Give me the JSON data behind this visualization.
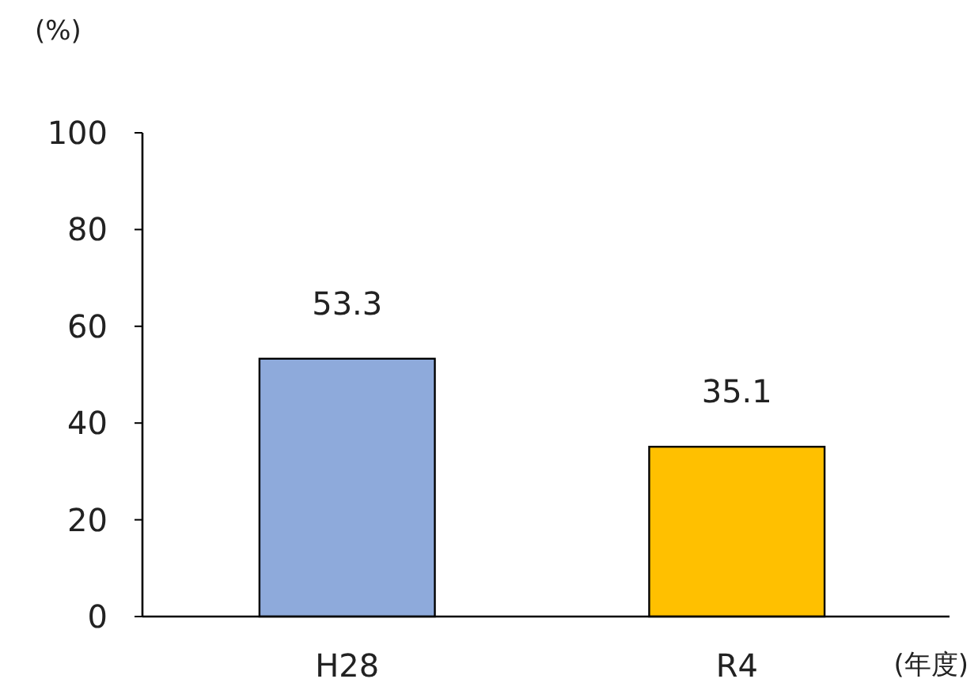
{
  "chart_data": {
    "type": "bar",
    "categories": [
      "H28",
      "R4"
    ],
    "values": [
      53.3,
      35.1
    ],
    "colors": [
      "#8eaadb",
      "#ffc000"
    ],
    "ylim": [
      0,
      100
    ],
    "yticks": [
      0,
      20,
      40,
      60,
      80,
      100
    ],
    "ylabel": "(%)",
    "xlabel": "(年度)",
    "data_labels": true,
    "grid": false
  }
}
